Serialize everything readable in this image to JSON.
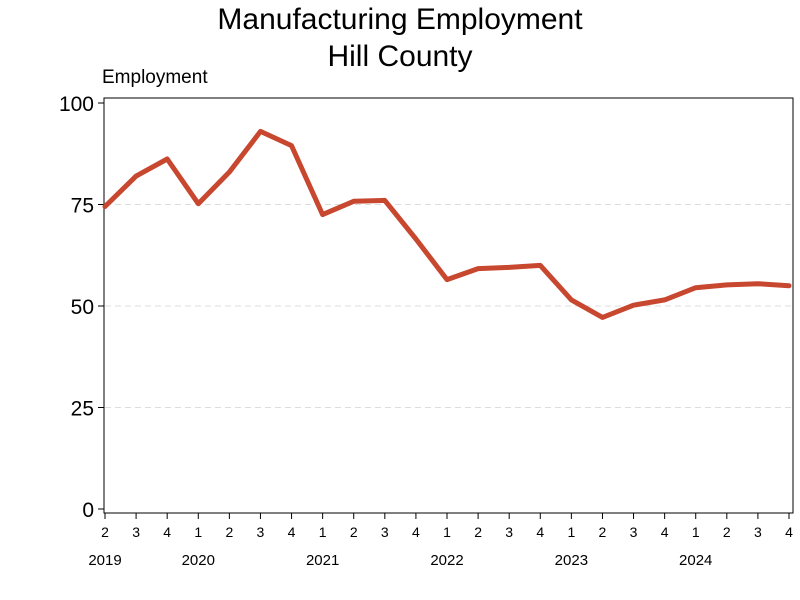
{
  "chart_data": {
    "type": "line",
    "title": "Manufacturing Employment",
    "subtitle": "Hill County",
    "ylabel": "Employment",
    "ylim": [
      0,
      100
    ],
    "y_ticks": [
      0,
      25,
      50,
      75,
      100
    ],
    "grid": "horizontal dashed",
    "x_tick_labels": [
      "2",
      "3",
      "4",
      "1",
      "2",
      "3",
      "4",
      "1",
      "2",
      "3",
      "4",
      "1",
      "2",
      "3",
      "4",
      "1",
      "2",
      "3",
      "4",
      "1",
      "2",
      "3",
      "4"
    ],
    "years": [
      {
        "label": "2019",
        "tick_index": 0
      },
      {
        "label": "2020",
        "tick_index": 3
      },
      {
        "label": "2021",
        "tick_index": 7
      },
      {
        "label": "2022",
        "tick_index": 11
      },
      {
        "label": "2023",
        "tick_index": 15
      },
      {
        "label": "2024",
        "tick_index": 19
      }
    ],
    "series": [
      {
        "color": "#c8472f",
        "values": [
          74.5,
          82,
          86.2,
          75.2,
          83,
          93,
          89.5,
          72.5,
          75.8,
          76,
          66.5,
          56.5,
          59.2,
          59.5,
          60,
          51.5,
          47.2,
          50.2,
          51.5,
          54.5,
          55.2,
          55.5,
          55
        ]
      }
    ]
  }
}
